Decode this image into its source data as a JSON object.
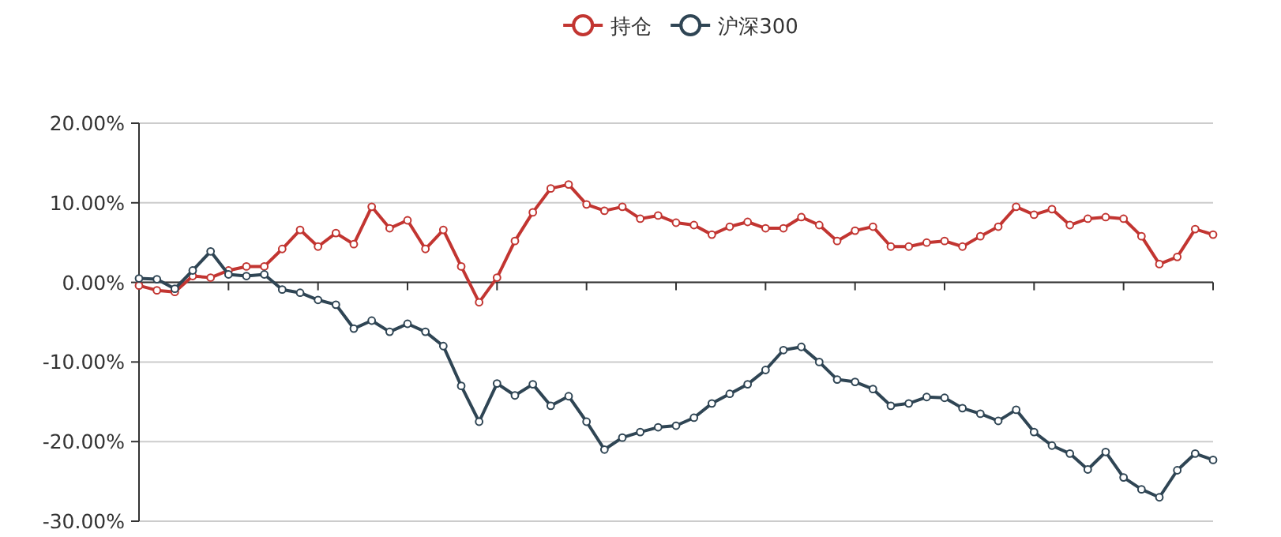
{
  "chart_data": {
    "type": "line",
    "categories": [
      null,
      null,
      null,
      null,
      null,
      null,
      null,
      null,
      null,
      null,
      null,
      null,
      null,
      null,
      null,
      null,
      null,
      null,
      null,
      null,
      null,
      null,
      null,
      null,
      null,
      null,
      null,
      null,
      null,
      null,
      null,
      null,
      null,
      null,
      null,
      null,
      null,
      null,
      null,
      null,
      null,
      null,
      null,
      null,
      null,
      null,
      null,
      null,
      null,
      null,
      null,
      null,
      null,
      null,
      null,
      null,
      null,
      null,
      null,
      null,
      null
    ],
    "series": [
      {
        "name": "持仓",
        "color": "#c23531",
        "values": [
          -0.4,
          -1.0,
          -1.2,
          0.8,
          0.6,
          1.5,
          2.0,
          2.0,
          4.2,
          6.6,
          4.5,
          6.2,
          4.8,
          9.5,
          6.8,
          7.8,
          4.2,
          6.6,
          2.0,
          -2.5,
          0.6,
          5.2,
          8.8,
          11.8,
          12.3,
          9.8,
          9.0,
          9.5,
          8.0,
          8.4,
          7.5,
          7.2,
          6.0,
          7.0,
          7.6,
          6.8,
          6.8,
          8.2,
          7.2,
          5.2,
          6.5,
          7.0,
          4.5,
          4.5,
          5.0,
          5.2,
          4.5,
          5.8,
          7.0,
          9.5,
          8.5,
          9.2,
          7.2,
          8.0,
          8.2,
          8.0,
          5.8,
          2.3,
          3.2,
          6.7,
          6.0
        ]
      },
      {
        "name": "沪深300",
        "color": "#2f4554",
        "values": [
          0.5,
          0.4,
          -0.8,
          1.5,
          3.9,
          1.0,
          0.8,
          1.0,
          -0.9,
          -1.3,
          -2.2,
          -2.8,
          -5.8,
          -4.8,
          -6.2,
          -5.2,
          -6.2,
          -8.0,
          -13.0,
          -17.5,
          -12.7,
          -14.2,
          -12.8,
          -15.5,
          -14.3,
          -17.5,
          -21.0,
          -19.5,
          -18.8,
          -18.2,
          -18.0,
          -17.0,
          -15.2,
          -14.0,
          -12.8,
          -11.0,
          -8.5,
          -8.1,
          -10.0,
          -12.2,
          -12.5,
          -13.4,
          -15.5,
          -15.2,
          -14.4,
          -14.5,
          -15.8,
          -16.5,
          -17.4,
          -16.0,
          -18.8,
          -20.5,
          -21.5,
          -23.5,
          -21.3,
          -24.5,
          -26.0,
          -27.0,
          -23.6,
          -21.5,
          -22.3
        ]
      }
    ],
    "ylim": [
      -30,
      20
    ],
    "yticks": [
      {
        "value": -30,
        "label": "-30.00%"
      },
      {
        "value": -20,
        "label": "-20.00%"
      },
      {
        "value": -10,
        "label": "-10.00%"
      },
      {
        "value": 0,
        "label": "0.00%"
      },
      {
        "value": 10,
        "label": "10.00%"
      },
      {
        "value": 20,
        "label": "20.00%"
      }
    ],
    "grid": "y",
    "legend": "top",
    "marker": "circle",
    "line_style": "solid"
  }
}
